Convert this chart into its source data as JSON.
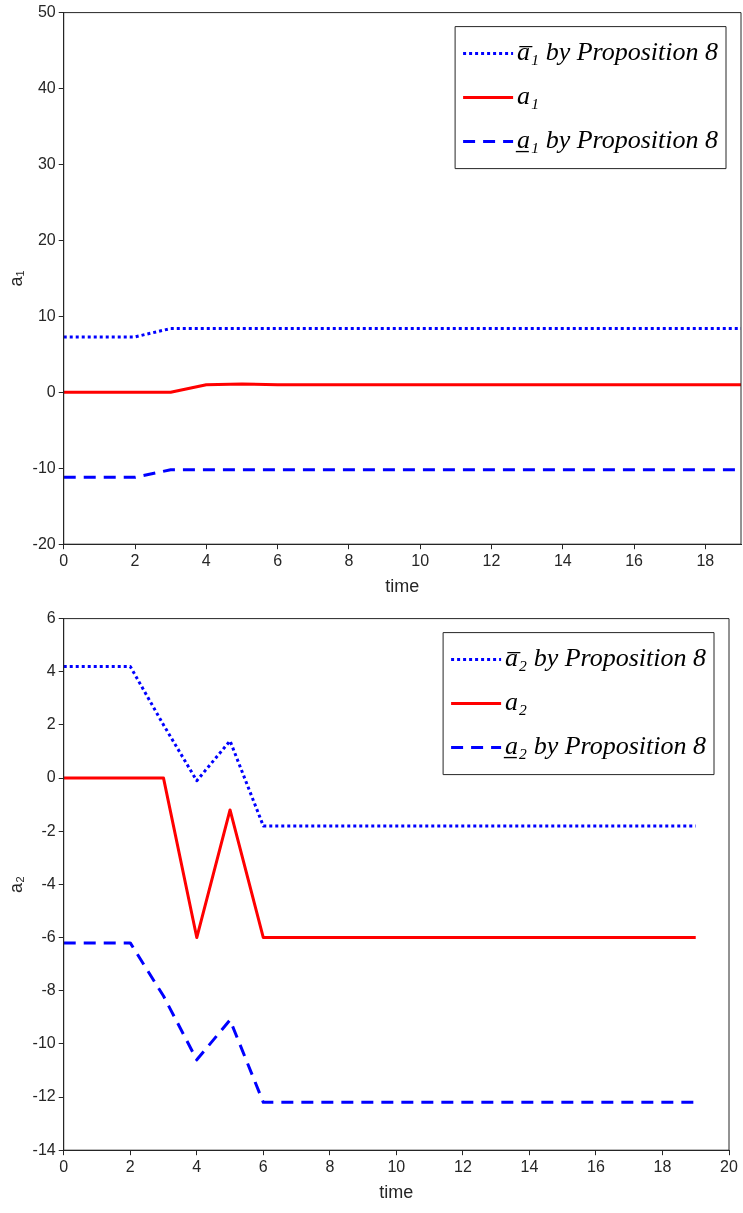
{
  "chart_data": [
    {
      "type": "line",
      "xlabel": "time",
      "ylabel": "a₁",
      "legend": "top right",
      "x": [
        0,
        1,
        2,
        3,
        4,
        5,
        6,
        7,
        8,
        9,
        10,
        11,
        12,
        13,
        14,
        15,
        16,
        17,
        18,
        19
      ],
      "xlim": [
        0,
        19
      ],
      "xticks": [
        0,
        2,
        4,
        6,
        8,
        10,
        12,
        14,
        16,
        18
      ],
      "ylim": [
        -20,
        50
      ],
      "yticks": [
        -20,
        -10,
        0,
        10,
        20,
        30,
        40,
        50
      ],
      "series": [
        {
          "name": "a̅₁ by Proposition 8",
          "color": "#0000ff",
          "line_style": "dotted",
          "values": [
            7.3,
            7.3,
            7.3,
            8.4,
            8.4,
            8.4,
            8.4,
            8.4,
            8.4,
            8.4,
            8.4,
            8.4,
            8.4,
            8.4,
            8.4,
            8.4,
            8.4,
            8.4,
            8.4,
            8.4
          ]
        },
        {
          "name": "a₁",
          "color": "#ff0000",
          "line_style": "solid",
          "values": [
            0,
            0,
            0,
            0,
            1,
            1.1,
            1,
            1,
            1,
            1,
            1,
            1,
            1,
            1,
            1,
            1,
            1,
            1,
            1,
            1
          ]
        },
        {
          "name": "a̲₁ by Proposition 8",
          "color": "#0000ff",
          "line_style": "dashed",
          "values": [
            -11.2,
            -11.2,
            -11.2,
            -10.2,
            -10.2,
            -10.2,
            -10.2,
            -10.2,
            -10.2,
            -10.2,
            -10.2,
            -10.2,
            -10.2,
            -10.2,
            -10.2,
            -10.2,
            -10.2,
            -10.2,
            -10.2,
            -10.2
          ]
        }
      ]
    },
    {
      "type": "line",
      "xlabel": "time",
      "ylabel": "a₂",
      "legend": "top right",
      "x": [
        0,
        1,
        2,
        3,
        4,
        5,
        6,
        7,
        8,
        9,
        10,
        11,
        12,
        13,
        14,
        15,
        16,
        17,
        18,
        19
      ],
      "xlim": [
        0,
        20
      ],
      "xticks": [
        0,
        2,
        4,
        6,
        8,
        10,
        12,
        14,
        16,
        18,
        20
      ],
      "ylim": [
        -14,
        6
      ],
      "yticks": [
        -14,
        -12,
        -10,
        -8,
        -6,
        -4,
        -2,
        0,
        2,
        4,
        6
      ],
      "series": [
        {
          "name": "a̅₂ by Proposition 8",
          "color": "#0000ff",
          "line_style": "dotted",
          "values": [
            4.2,
            4.2,
            4.2,
            2,
            -0.1,
            1.4,
            -1.8,
            -1.8,
            -1.8,
            -1.8,
            -1.8,
            -1.8,
            -1.8,
            -1.8,
            -1.8,
            -1.8,
            -1.8,
            -1.8,
            -1.8,
            -1.8
          ]
        },
        {
          "name": "a₂",
          "color": "#ff0000",
          "line_style": "solid",
          "values": [
            0,
            0,
            0,
            0,
            -6,
            -1.2,
            -6,
            -6,
            -6,
            -6,
            -6,
            -6,
            -6,
            -6,
            -6,
            -6,
            -6,
            -6,
            -6,
            -6
          ]
        },
        {
          "name": "a̲₂ by Proposition 8",
          "color": "#0000ff",
          "line_style": "dashed",
          "values": [
            -6.2,
            -6.2,
            -6.2,
            -8.2,
            -10.6,
            -9.1,
            -12.2,
            -12.2,
            -12.2,
            -12.2,
            -12.2,
            -12.2,
            -12.2,
            -12.2,
            -12.2,
            -12.2,
            -12.2,
            -12.2,
            -12.2,
            -12.2
          ]
        }
      ]
    }
  ]
}
